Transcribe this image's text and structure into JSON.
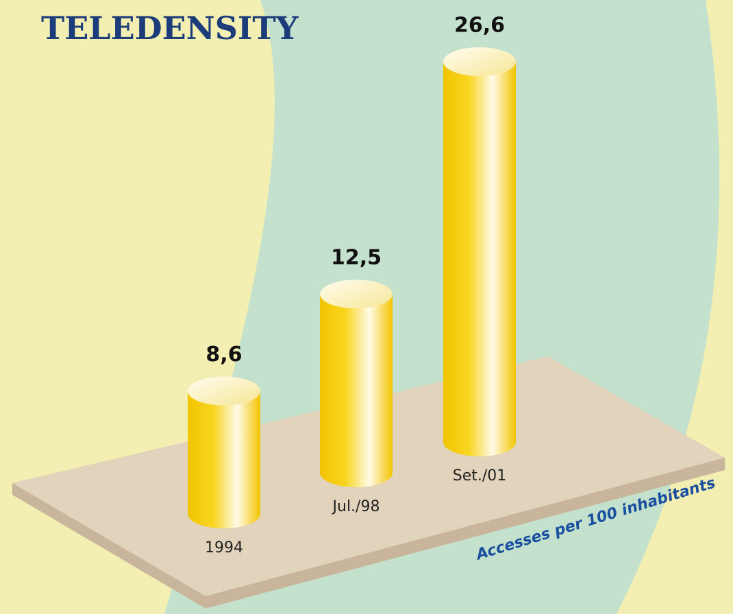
{
  "chart_data": {
    "type": "bar",
    "title": "TELEDENSITY",
    "categories": [
      "1994",
      "Jul./98",
      "Set./01"
    ],
    "values": [
      8.6,
      12.5,
      26.6
    ],
    "value_labels": [
      "8,6",
      "12,5",
      "26,6"
    ],
    "annotation": "Accesses per 100 inhabitants",
    "color": "#f5c800"
  }
}
